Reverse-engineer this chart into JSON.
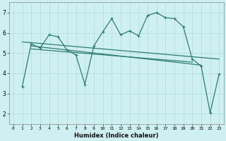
{
  "background_color": "#cff0f0",
  "grid_color": "#b8dede",
  "line_color": "#2e7d6e",
  "xlabel": "Humidex (Indice chaleur)",
  "xlim": [
    -0.5,
    23.5
  ],
  "ylim": [
    1.5,
    7.5
  ],
  "yticks": [
    2,
    3,
    4,
    5,
    6,
    7
  ],
  "xticks": [
    0,
    1,
    2,
    3,
    4,
    5,
    6,
    7,
    8,
    9,
    10,
    11,
    12,
    13,
    14,
    15,
    16,
    17,
    18,
    19,
    20,
    21,
    22,
    23
  ],
  "main_x": [
    1,
    2,
    3,
    4,
    5,
    6,
    7,
    8,
    9,
    10,
    11,
    12,
    13,
    14,
    15,
    16,
    17,
    18,
    19,
    20,
    21,
    22,
    23
  ],
  "main_y": [
    3.35,
    5.45,
    5.25,
    5.9,
    5.8,
    5.15,
    4.9,
    3.45,
    5.35,
    6.05,
    6.7,
    5.9,
    6.1,
    5.85,
    6.85,
    7.0,
    6.75,
    6.7,
    6.3,
    4.7,
    4.35,
    2.05,
    3.95
  ],
  "trend1_x": [
    1,
    23
  ],
  "trend1_y": [
    5.55,
    4.7
  ],
  "trend2_x": [
    2,
    21
  ],
  "trend2_y": [
    5.35,
    4.4
  ],
  "trend3_x": [
    2,
    20
  ],
  "trend3_y": [
    5.2,
    4.55
  ],
  "linewidth": 0.9,
  "marker_size": 2.5
}
